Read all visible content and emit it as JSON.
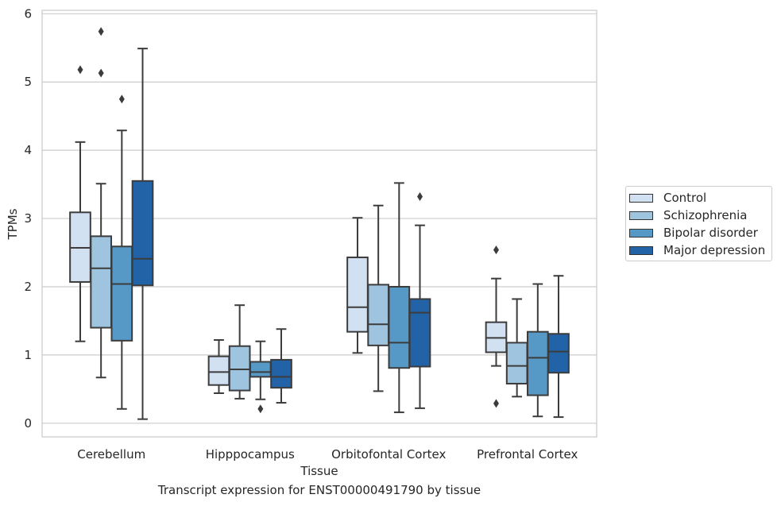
{
  "chart_data": {
    "type": "box",
    "title": "",
    "caption": "Transcript expression for ENST00000491790 by tissue",
    "xlabel": "Tissue",
    "ylabel": "TPMs",
    "ylim": [
      -0.2,
      6.05
    ],
    "yticks": [
      0,
      1,
      2,
      3,
      4,
      5,
      6
    ],
    "grid": "horizontal",
    "legend_position": "right",
    "categories": [
      "Cerebellum",
      "Hipppocampus",
      "Orbitofontal Cortex",
      "Prefrontal Cortex"
    ],
    "series": [
      {
        "name": "Control",
        "color": "#d2e1f1",
        "boxes": [
          {
            "whislo": 1.2,
            "q1": 2.07,
            "med": 2.57,
            "q3": 3.09,
            "whishi": 4.12,
            "fliers": [
              5.18
            ]
          },
          {
            "whislo": 0.44,
            "q1": 0.56,
            "med": 0.75,
            "q3": 0.98,
            "whishi": 1.22,
            "fliers": []
          },
          {
            "whislo": 1.03,
            "q1": 1.34,
            "med": 1.7,
            "q3": 2.43,
            "whishi": 3.01,
            "fliers": []
          },
          {
            "whislo": 0.84,
            "q1": 1.04,
            "med": 1.25,
            "q3": 1.48,
            "whishi": 2.12,
            "fliers": [
              2.54,
              0.29
            ]
          }
        ]
      },
      {
        "name": "Schizophrenia",
        "color": "#9fc4e0",
        "boxes": [
          {
            "whislo": 0.67,
            "q1": 1.4,
            "med": 2.27,
            "q3": 2.74,
            "whishi": 3.51,
            "fliers": [
              5.74,
              5.13
            ]
          },
          {
            "whislo": 0.36,
            "q1": 0.48,
            "med": 0.79,
            "q3": 1.13,
            "whishi": 1.73,
            "fliers": []
          },
          {
            "whislo": 0.47,
            "q1": 1.14,
            "med": 1.45,
            "q3": 2.03,
            "whishi": 3.19,
            "fliers": []
          },
          {
            "whislo": 0.39,
            "q1": 0.58,
            "med": 0.84,
            "q3": 1.18,
            "whishi": 1.82,
            "fliers": []
          }
        ]
      },
      {
        "name": "Bipolar disorder",
        "color": "#5799c6",
        "boxes": [
          {
            "whislo": 0.21,
            "q1": 1.21,
            "med": 2.04,
            "q3": 2.59,
            "whishi": 4.29,
            "fliers": [
              4.75
            ]
          },
          {
            "whislo": 0.35,
            "q1": 0.68,
            "med": 0.75,
            "q3": 0.9,
            "whishi": 1.2,
            "fliers": [
              0.21
            ]
          },
          {
            "whislo": 0.16,
            "q1": 0.81,
            "med": 1.18,
            "q3": 2.0,
            "whishi": 3.52,
            "fliers": []
          },
          {
            "whislo": 0.1,
            "q1": 0.41,
            "med": 0.96,
            "q3": 1.34,
            "whishi": 2.04,
            "fliers": []
          }
        ]
      },
      {
        "name": "Major depression",
        "color": "#2263a7",
        "boxes": [
          {
            "whislo": 0.06,
            "q1": 2.02,
            "med": 2.41,
            "q3": 3.55,
            "whishi": 5.49,
            "fliers": []
          },
          {
            "whislo": 0.3,
            "q1": 0.52,
            "med": 0.68,
            "q3": 0.93,
            "whishi": 1.38,
            "fliers": []
          },
          {
            "whislo": 0.22,
            "q1": 0.83,
            "med": 1.62,
            "q3": 1.82,
            "whishi": 2.9,
            "fliers": [
              3.32
            ]
          },
          {
            "whislo": 0.09,
            "q1": 0.74,
            "med": 1.05,
            "q3": 1.31,
            "whishi": 2.16,
            "fliers": []
          }
        ]
      }
    ]
  }
}
